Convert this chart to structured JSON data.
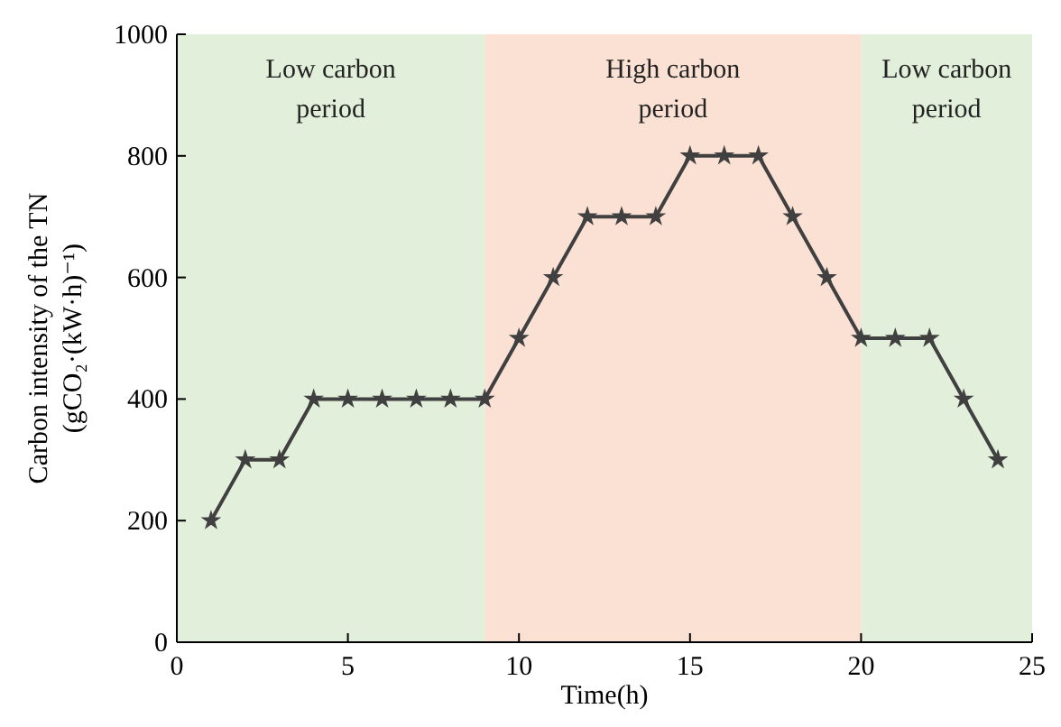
{
  "chart_data": {
    "type": "line",
    "xlabel": "Time(h)",
    "ylabel": "Carbon intensity of the TN\n(gCO₂·(kW·h)⁻¹)",
    "x": [
      1,
      2,
      3,
      4,
      5,
      6,
      7,
      8,
      9,
      10,
      11,
      12,
      13,
      14,
      15,
      16,
      17,
      18,
      19,
      20,
      21,
      22,
      23,
      24
    ],
    "series": [
      {
        "color": "#404040",
        "values": [
          200,
          300,
          300,
          400,
          400,
          400,
          400,
          400,
          400,
          500,
          600,
          700,
          700,
          700,
          800,
          800,
          800,
          700,
          600,
          500,
          500,
          500,
          400,
          300
        ]
      }
    ],
    "xlim": [
      0,
      25
    ],
    "xticks": [
      0,
      5,
      10,
      15,
      20,
      25
    ],
    "ylim": [
      0,
      1000
    ],
    "yticks": [
      0,
      200,
      400,
      600,
      800,
      1000
    ],
    "bands": [
      {
        "axis": "x",
        "from": 0,
        "to": 9,
        "label": "Low carbon\nperiod",
        "color": "#e2efda"
      },
      {
        "axis": "x",
        "from": 9,
        "to": 20,
        "label": "High carbon\nperiod",
        "color": "#fbe0d4"
      },
      {
        "axis": "x",
        "from": 20,
        "to": 25,
        "label": "Low carbon\nperiod",
        "color": "#e2efda"
      }
    ],
    "marker": "star",
    "line_style": "solid",
    "grid": false
  }
}
